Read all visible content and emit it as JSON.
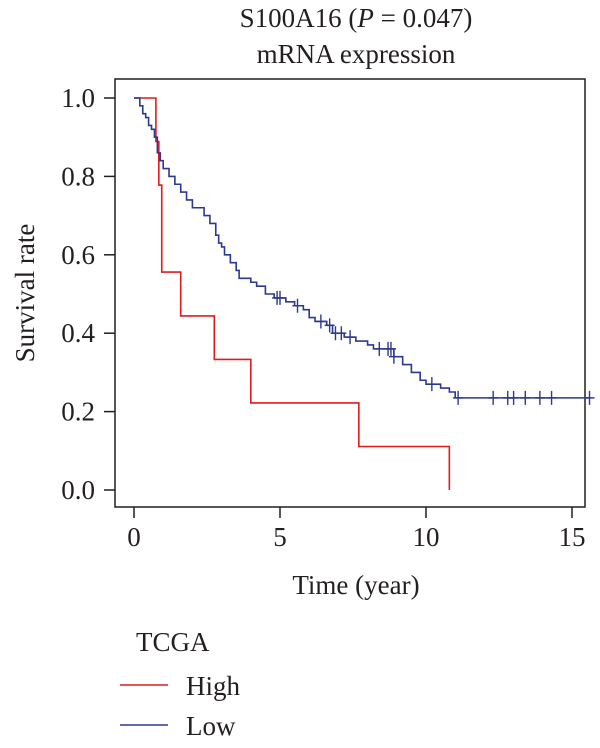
{
  "chart_data": {
    "type": "line",
    "title_prefix": "S100A16 (",
    "title_p_symbol": "P",
    "title_p_value": " = 0.047)",
    "subtitle": "mRNA expression",
    "xlabel": "Time (year)",
    "ylabel": "Survival rate",
    "xlim": [
      0,
      15.8
    ],
    "ylim": [
      0,
      1.0
    ],
    "x_ticks": [
      "0",
      "5",
      "10",
      "15"
    ],
    "x_tick_values": [
      0,
      5,
      10,
      15
    ],
    "y_ticks": [
      "0.0",
      "0.2",
      "0.4",
      "0.6",
      "0.8",
      "1.0"
    ],
    "y_tick_values": [
      0,
      0.2,
      0.4,
      0.6,
      0.8,
      1.0
    ],
    "legend": {
      "title": "TCGA",
      "placement": "bottom-left"
    },
    "series": [
      {
        "name": "High",
        "color": "#e31a1c",
        "steps": [
          [
            0,
            1.0
          ],
          [
            0.75,
            0.889
          ],
          [
            0.85,
            0.778
          ],
          [
            0.95,
            0.556
          ],
          [
            1.6,
            0.444
          ],
          [
            2.75,
            0.333
          ],
          [
            4.0,
            0.222
          ],
          [
            7.7,
            0.111
          ],
          [
            10.8,
            0.0
          ]
        ],
        "end_x": 10.8,
        "censor_times": []
      },
      {
        "name": "Low",
        "color": "#2b3990",
        "steps": [
          [
            0,
            1.0
          ],
          [
            0.2,
            0.98
          ],
          [
            0.3,
            0.96
          ],
          [
            0.4,
            0.95
          ],
          [
            0.5,
            0.93
          ],
          [
            0.6,
            0.92
          ],
          [
            0.7,
            0.9
          ],
          [
            0.8,
            0.86
          ],
          [
            0.9,
            0.84
          ],
          [
            1.0,
            0.82
          ],
          [
            1.2,
            0.8
          ],
          [
            1.4,
            0.78
          ],
          [
            1.6,
            0.76
          ],
          [
            1.8,
            0.74
          ],
          [
            2.0,
            0.72
          ],
          [
            2.4,
            0.7
          ],
          [
            2.6,
            0.68
          ],
          [
            2.8,
            0.65
          ],
          [
            2.9,
            0.63
          ],
          [
            3.0,
            0.62
          ],
          [
            3.1,
            0.6
          ],
          [
            3.3,
            0.58
          ],
          [
            3.5,
            0.56
          ],
          [
            3.6,
            0.54
          ],
          [
            4.0,
            0.53
          ],
          [
            4.2,
            0.52
          ],
          [
            4.5,
            0.5
          ],
          [
            4.8,
            0.49
          ],
          [
            5.2,
            0.48
          ],
          [
            5.5,
            0.47
          ],
          [
            5.8,
            0.46
          ],
          [
            6.0,
            0.44
          ],
          [
            6.2,
            0.43
          ],
          [
            6.6,
            0.42
          ],
          [
            6.8,
            0.4
          ],
          [
            7.2,
            0.39
          ],
          [
            7.6,
            0.38
          ],
          [
            8.0,
            0.37
          ],
          [
            8.2,
            0.36
          ],
          [
            8.9,
            0.34
          ],
          [
            9.2,
            0.32
          ],
          [
            9.5,
            0.3
          ],
          [
            9.8,
            0.28
          ],
          [
            10.0,
            0.27
          ],
          [
            10.5,
            0.26
          ],
          [
            10.8,
            0.25
          ],
          [
            11.0,
            0.235
          ]
        ],
        "end_x": 15.6,
        "censor_times": [
          4.9,
          5.0,
          5.6,
          6.4,
          6.7,
          6.9,
          7.1,
          7.4,
          8.4,
          8.7,
          8.8,
          8.9,
          10.2,
          11.1,
          12.3,
          12.8,
          13.0,
          13.4,
          13.9,
          14.3,
          15.6
        ]
      }
    ]
  }
}
